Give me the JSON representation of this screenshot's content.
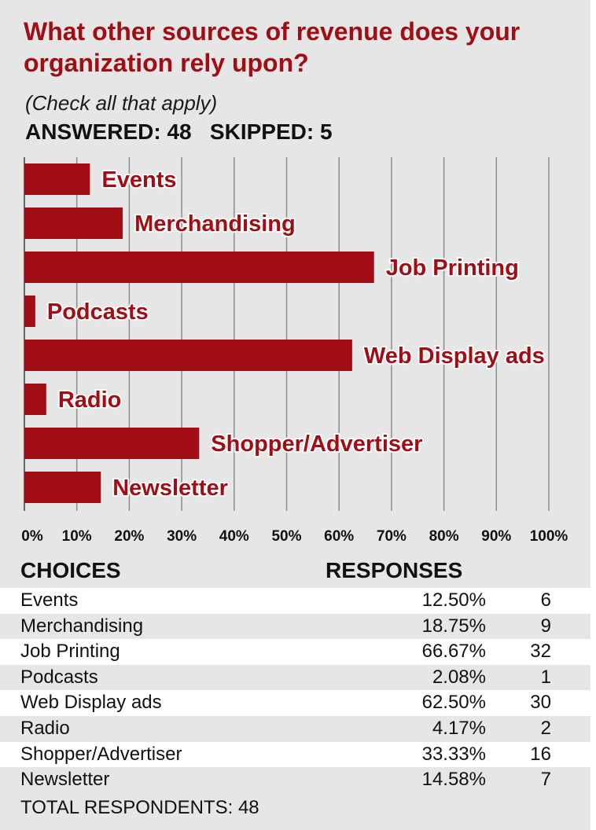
{
  "title": "What other sources of revenue does your organization rely upon?",
  "subtitle": "(Check all that apply)",
  "answered_skipped": "ANSWERED: 48   SKIPPED: 5",
  "colors": {
    "bar": "#a00d14",
    "panel": "#e6e6e6",
    "grid": "#8c8c8c"
  },
  "table": {
    "header_choices": "CHOICES",
    "header_responses": "RESPONSES",
    "rows": [
      {
        "choice": "Events",
        "percent": "12.50%",
        "count": "6"
      },
      {
        "choice": "Merchandising",
        "percent": "18.75%",
        "count": "9"
      },
      {
        "choice": "Job Printing",
        "percent": "66.67%",
        "count": "32"
      },
      {
        "choice": "Podcasts",
        "percent": "2.08%",
        "count": "1"
      },
      {
        "choice": "Web Display ads",
        "percent": "62.50%",
        "count": "30"
      },
      {
        "choice": "Radio",
        "percent": "4.17%",
        "count": "2"
      },
      {
        "choice": "Shopper/Advertiser",
        "percent": "33.33%",
        "count": "16"
      },
      {
        "choice": "Newsletter",
        "percent": "14.58%",
        "count": "7"
      }
    ],
    "total": "TOTAL RESPONDENTS: 48"
  },
  "chart_data": {
    "type": "bar",
    "orientation": "horizontal",
    "categories": [
      "Events",
      "Merchandising",
      "Job Printing",
      "Podcasts",
      "Web Display ads",
      "Radio",
      "Shopper/Advertiser",
      "Newsletter"
    ],
    "values": [
      12.5,
      18.75,
      66.67,
      2.08,
      62.5,
      4.17,
      33.33,
      14.58
    ],
    "xlim": [
      0,
      100
    ],
    "xticks": [
      "0%",
      "10%",
      "20%",
      "30%",
      "40%",
      "50%",
      "60%",
      "70%",
      "80%",
      "90%",
      "100%"
    ],
    "grid": true,
    "bar_labels": "category name right of bar"
  }
}
